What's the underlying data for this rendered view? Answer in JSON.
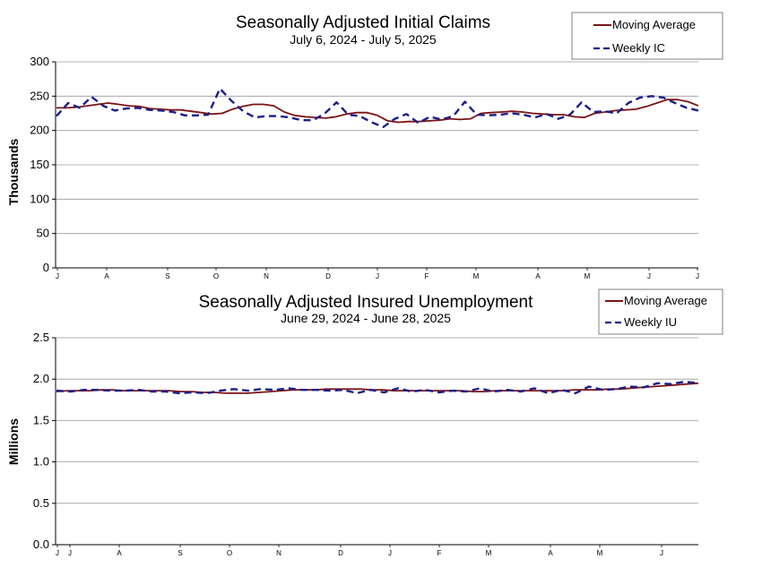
{
  "colors": {
    "moving_average": "#7b1416",
    "weekly": "#1b1f8a",
    "grid": "#9a9a9a"
  },
  "chart_data": [
    {
      "type": "line",
      "title": "Seasonally Adjusted Initial Claims",
      "subtitle": "July 6, 2024 - July 5, 2025",
      "ylabel": "Thousands",
      "xlabel": "",
      "ylim": [
        0,
        300
      ],
      "yticks": [
        "0",
        "50",
        "100",
        "150",
        "200",
        "250",
        "300"
      ],
      "month_labels": [
        "J",
        "A",
        "S",
        "O",
        "N",
        "D",
        "J",
        "F",
        "M",
        "A",
        "M",
        "J",
        "J"
      ],
      "grid": true,
      "legend_position": "top-right",
      "series": [
        {
          "name": "Moving Average",
          "style": "solid",
          "values": [
            233,
            233,
            234,
            236,
            238,
            240,
            238,
            236,
            235,
            232,
            231,
            230,
            230,
            228,
            226,
            224,
            225,
            231,
            235,
            238,
            238,
            236,
            227,
            222,
            220,
            219,
            218,
            220,
            224,
            226,
            226,
            222,
            214,
            212,
            213,
            213,
            214,
            215,
            217,
            216,
            217,
            225,
            226,
            227,
            228,
            227,
            225,
            224,
            223,
            223,
            220,
            219,
            225,
            227,
            229,
            230,
            231,
            235,
            240,
            245,
            245,
            242,
            236
          ]
        },
        {
          "name": "Weekly IC",
          "style": "dashed",
          "values": [
            221,
            240,
            233,
            249,
            236,
            229,
            232,
            233,
            230,
            229,
            227,
            222,
            222,
            223,
            261,
            243,
            228,
            219,
            221,
            221,
            219,
            215,
            215,
            225,
            241,
            223,
            221,
            212,
            205,
            217,
            224,
            211,
            220,
            216,
            221,
            242,
            223,
            222,
            223,
            225,
            223,
            219,
            224,
            217,
            223,
            241,
            227,
            228,
            225,
            240,
            248,
            250,
            248,
            240,
            233,
            229
          ]
        }
      ]
    },
    {
      "type": "line",
      "title": "Seasonally Adjusted Insured Unemployment",
      "subtitle": "June 29, 2024 - June 28, 2025",
      "ylabel": "Millions",
      "xlabel": "",
      "ylim": [
        0,
        2.5
      ],
      "yticks": [
        "0.0",
        "0.5",
        "1.0",
        "1.5",
        "2.0",
        "2.5"
      ],
      "month_labels": [
        "J",
        "J",
        "A",
        "S",
        "O",
        "N",
        "D",
        "J",
        "F",
        "M",
        "A",
        "M",
        "J"
      ],
      "grid": true,
      "legend_position": "top-right",
      "series": [
        {
          "name": "Moving Average",
          "style": "solid",
          "values": [
            1.85,
            1.86,
            1.86,
            1.86,
            1.87,
            1.87,
            1.86,
            1.86,
            1.86,
            1.86,
            1.86,
            1.85,
            1.85,
            1.84,
            1.84,
            1.83,
            1.83,
            1.83,
            1.84,
            1.85,
            1.86,
            1.87,
            1.87,
            1.87,
            1.88,
            1.88,
            1.88,
            1.88,
            1.87,
            1.87,
            1.86,
            1.86,
            1.86,
            1.86,
            1.86,
            1.86,
            1.86,
            1.85,
            1.85,
            1.86,
            1.86,
            1.86,
            1.86,
            1.86,
            1.86,
            1.86,
            1.87,
            1.87,
            1.87,
            1.88,
            1.88,
            1.89,
            1.9,
            1.91,
            1.92,
            1.93,
            1.94,
            1.95
          ]
        },
        {
          "name": "Weekly IU",
          "style": "dashed",
          "values": [
            1.86,
            1.85,
            1.87,
            1.87,
            1.86,
            1.86,
            1.87,
            1.85,
            1.85,
            1.83,
            1.84,
            1.83,
            1.86,
            1.88,
            1.86,
            1.88,
            1.87,
            1.89,
            1.87,
            1.87,
            1.86,
            1.87,
            1.83,
            1.87,
            1.84,
            1.89,
            1.85,
            1.87,
            1.84,
            1.86,
            1.85,
            1.89,
            1.85,
            1.87,
            1.85,
            1.89,
            1.83,
            1.87,
            1.83,
            1.91,
            1.87,
            1.88,
            1.91,
            1.9,
            1.95,
            1.94,
            1.97,
            1.95
          ]
        }
      ]
    }
  ]
}
